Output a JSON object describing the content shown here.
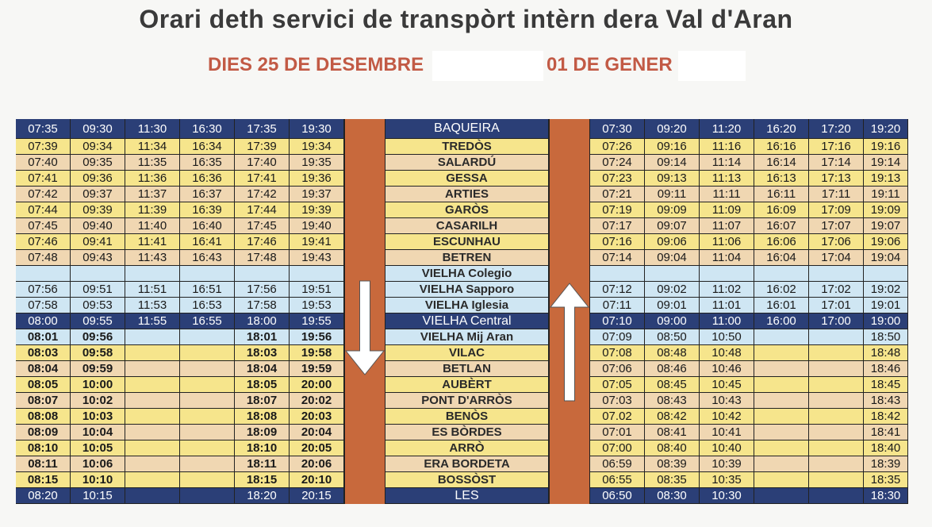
{
  "header": {
    "title": "Orari deth servici de transpòrt intèrn dera Val d'Aran",
    "days_left": "DIES 25 DE DESEMBRE",
    "days_right": "01 DE GENER"
  },
  "colors": {
    "dark": "#2b3f77",
    "yellow": "#f6e58c",
    "tan": "#f0d7b2",
    "blue": "#cfe6f3",
    "bar": "#c8693c",
    "title": "#3a3a3a",
    "subtitle": "#c25a45"
  },
  "icons": {
    "down": "arrow-down-icon",
    "up": "arrow-up-icon"
  },
  "timetable": {
    "rows": [
      {
        "stop": "BAQUEIRA",
        "style": "dark",
        "left": [
          "07:35",
          "09:30",
          "11:30",
          "16:30",
          "17:35",
          "19:30"
        ],
        "right": [
          "07:30",
          "09:20",
          "11:20",
          "16:20",
          "17:20",
          "19:20"
        ]
      },
      {
        "stop": "TREDÒS",
        "style": "yellow",
        "left": [
          "07:39",
          "09:34",
          "11:34",
          "16:34",
          "17:39",
          "19:34"
        ],
        "right": [
          "07:26",
          "09:16",
          "11:16",
          "16:16",
          "17:16",
          "19:16"
        ]
      },
      {
        "stop": "SALARDÚ",
        "style": "tan",
        "left": [
          "07:40",
          "09:35",
          "11:35",
          "16:35",
          "17:40",
          "19:35"
        ],
        "right": [
          "07:24",
          "09:14",
          "11:14",
          "16:14",
          "17:14",
          "19:14"
        ]
      },
      {
        "stop": "GESSA",
        "style": "yellow",
        "left": [
          "07:41",
          "09:36",
          "11:36",
          "16:36",
          "17:41",
          "19:36"
        ],
        "right": [
          "07:23",
          "09:13",
          "11:13",
          "16:13",
          "17:13",
          "19:13"
        ]
      },
      {
        "stop": "ARTIES",
        "style": "tan",
        "left": [
          "07:42",
          "09:37",
          "11:37",
          "16:37",
          "17:42",
          "19:37"
        ],
        "right": [
          "07:21",
          "09:11",
          "11:11",
          "16:11",
          "17:11",
          "19:11"
        ]
      },
      {
        "stop": "GARÒS",
        "style": "yellow",
        "left": [
          "07:44",
          "09:39",
          "11:39",
          "16:39",
          "17:44",
          "19:39"
        ],
        "right": [
          "07:19",
          "09:09",
          "11:09",
          "16:09",
          "17:09",
          "19:09"
        ]
      },
      {
        "stop": "CASARILH",
        "style": "tan",
        "left": [
          "07:45",
          "09:40",
          "11:40",
          "16:40",
          "17:45",
          "19:40"
        ],
        "right": [
          "07:17",
          "09:07",
          "11:07",
          "16:07",
          "17:07",
          "19:07"
        ]
      },
      {
        "stop": "ESCUNHAU",
        "style": "yellow",
        "left": [
          "07:46",
          "09:41",
          "11:41",
          "16:41",
          "17:46",
          "19:41"
        ],
        "right": [
          "07:16",
          "09:06",
          "11:06",
          "16:06",
          "17:06",
          "19:06"
        ]
      },
      {
        "stop": "BETREN",
        "style": "tan",
        "left": [
          "07:48",
          "09:43",
          "11:43",
          "16:43",
          "17:48",
          "19:43"
        ],
        "right": [
          "07:14",
          "09:04",
          "11:04",
          "16:04",
          "17:04",
          "19:04"
        ]
      },
      {
        "stop": "VIELHA Colegio",
        "style": "blue",
        "left": [
          "",
          "",
          "",
          "",
          "",
          ""
        ],
        "right": [
          "",
          "",
          "",
          "",
          "",
          ""
        ]
      },
      {
        "stop": "VIELHA Sapporo",
        "style": "blue",
        "left": [
          "07:56",
          "09:51",
          "11:51",
          "16:51",
          "17:56",
          "19:51"
        ],
        "right": [
          "07:12",
          "09:02",
          "11:02",
          "16:02",
          "17:02",
          "19:02"
        ]
      },
      {
        "stop": "VIELHA Iglesia",
        "style": "blue",
        "left": [
          "07:58",
          "09:53",
          "11:53",
          "16:53",
          "17:58",
          "19:53"
        ],
        "right": [
          "07:11",
          "09:01",
          "11:01",
          "16:01",
          "17:01",
          "19:01"
        ]
      },
      {
        "stop": "VIELHA Central",
        "style": "dark",
        "left": [
          "08:00",
          "09:55",
          "11:55",
          "16:55",
          "18:00",
          "19:55"
        ],
        "right": [
          "07:10",
          "09:00",
          "11:00",
          "16:00",
          "17:00",
          "19:00"
        ]
      },
      {
        "stop": "VIELHA Mij Aran",
        "style": "blue",
        "left": [
          "08:01",
          "09:56",
          "",
          "",
          "18:01",
          "19:56"
        ],
        "right": [
          "07:09",
          "08:50",
          "10:50",
          "",
          "",
          "18:50"
        ]
      },
      {
        "stop": "VILAC",
        "style": "yellow",
        "left": [
          "08:03",
          "09:58",
          "",
          "",
          "18:03",
          "19:58"
        ],
        "right": [
          "07:08",
          "08:48",
          "10:48",
          "",
          "",
          "18:48"
        ]
      },
      {
        "stop": "BETLAN",
        "style": "tan",
        "left": [
          "08:04",
          "09:59",
          "",
          "",
          "18:04",
          "19:59"
        ],
        "right": [
          "07:06",
          "08:46",
          "10:46",
          "",
          "",
          "18:46"
        ]
      },
      {
        "stop": "AUBÈRT",
        "style": "yellow",
        "left": [
          "08:05",
          "10:00",
          "",
          "",
          "18:05",
          "20:00"
        ],
        "right": [
          "07:05",
          "08:45",
          "10:45",
          "",
          "",
          "18:45"
        ]
      },
      {
        "stop": "PONT D'ARRÒS",
        "style": "tan",
        "left": [
          "08:07",
          "10:02",
          "",
          "",
          "18:07",
          "20:02"
        ],
        "right": [
          "07:03",
          "08:43",
          "10:43",
          "",
          "",
          "18:43"
        ]
      },
      {
        "stop": "BENÒS",
        "style": "yellow",
        "left": [
          "08:08",
          "10:03",
          "",
          "",
          "18:08",
          "20:03"
        ],
        "right": [
          "07.02",
          "08:42",
          "10:42",
          "",
          "",
          "18:42"
        ]
      },
      {
        "stop": "ES BÒRDES",
        "style": "tan",
        "left": [
          "08:09",
          "10:04",
          "",
          "",
          "18:09",
          "20:04"
        ],
        "right": [
          "07:01",
          "08:41",
          "10:41",
          "",
          "",
          "18:41"
        ]
      },
      {
        "stop": "ARRÒ",
        "style": "yellow",
        "left": [
          "08:10",
          "10:05",
          "",
          "",
          "18:10",
          "20:05"
        ],
        "right": [
          "07:00",
          "08:40",
          "10:40",
          "",
          "",
          "18:40"
        ]
      },
      {
        "stop": "ERA BORDETA",
        "style": "tan",
        "left": [
          "08:11",
          "10:06",
          "",
          "",
          "18:11",
          "20:06"
        ],
        "right": [
          "06:59",
          "08:39",
          "10:39",
          "",
          "",
          "18:39"
        ]
      },
      {
        "stop": "BOSSÒST",
        "style": "yellow",
        "left": [
          "08:15",
          "10:10",
          "",
          "",
          "18:15",
          "20:10"
        ],
        "right": [
          "06:55",
          "08:35",
          "10:35",
          "",
          "",
          "18:35"
        ]
      },
      {
        "stop": "LES",
        "style": "dark",
        "left": [
          "08:20",
          "10:15",
          "",
          "",
          "18:20",
          "20:15"
        ],
        "right": [
          "06:50",
          "08:30",
          "10:30",
          "",
          "",
          "18:30"
        ]
      }
    ]
  }
}
